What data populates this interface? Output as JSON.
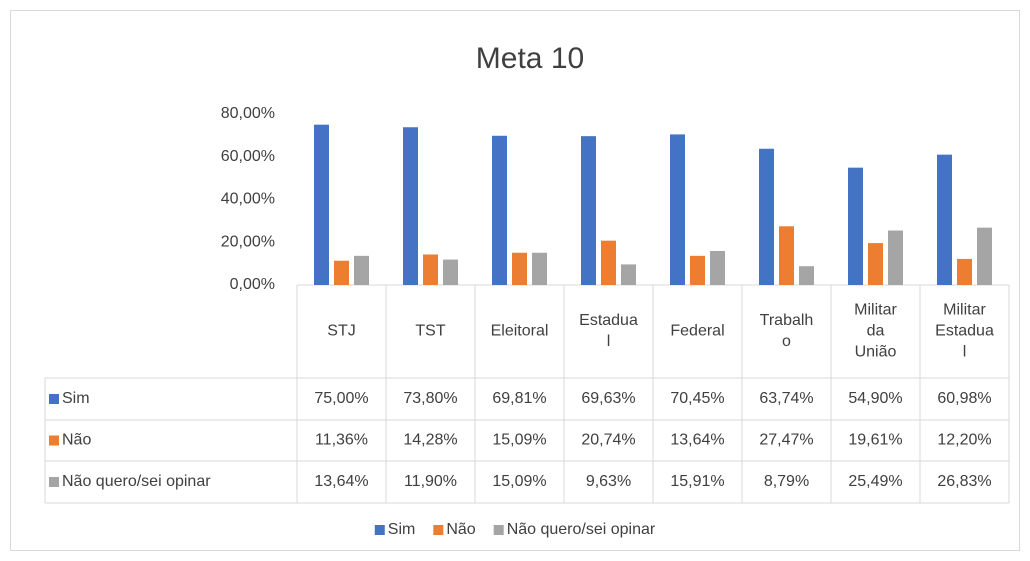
{
  "chart_data": {
    "type": "bar",
    "title": "Meta 10",
    "categories": [
      "STJ",
      "TST",
      "Eleitoral",
      "Estadual",
      "Federal",
      "Trabalho",
      "Militar da União",
      "Militar Estadual"
    ],
    "series": [
      {
        "name": "Sim",
        "color": "#4472c4",
        "values": [
          75.0,
          73.8,
          69.81,
          69.63,
          70.45,
          63.74,
          54.9,
          60.98
        ],
        "value_labels": [
          "75,00%",
          "73,80%",
          "69,81%",
          "69,63%",
          "70,45%",
          "63,74%",
          "54,90%",
          "60,98%"
        ]
      },
      {
        "name": "Não",
        "color": "#ed7d31",
        "values": [
          11.36,
          14.28,
          15.09,
          20.74,
          13.64,
          27.47,
          19.61,
          12.2
        ],
        "value_labels": [
          "11,36%",
          "14,28%",
          "15,09%",
          "20,74%",
          "13,64%",
          "27,47%",
          "19,61%",
          "12,20%"
        ]
      },
      {
        "name": "Não quero/sei opinar",
        "color": "#a5a5a5",
        "values": [
          13.64,
          11.9,
          15.09,
          9.63,
          15.91,
          8.79,
          25.49,
          26.83
        ],
        "value_labels": [
          "13,64%",
          "11,90%",
          "15,09%",
          "9,63%",
          "15,91%",
          "8,79%",
          "25,49%",
          "26,83%"
        ]
      }
    ],
    "ylim": [
      0,
      80
    ],
    "yticks": [
      {
        "value": 0,
        "label": "0,00%"
      },
      {
        "value": 20,
        "label": "20,00%"
      },
      {
        "value": 40,
        "label": "40,00%"
      },
      {
        "value": 60,
        "label": "60,00%"
      },
      {
        "value": 80,
        "label": "80,00%"
      }
    ],
    "grid": false,
    "legend": "bottom"
  }
}
